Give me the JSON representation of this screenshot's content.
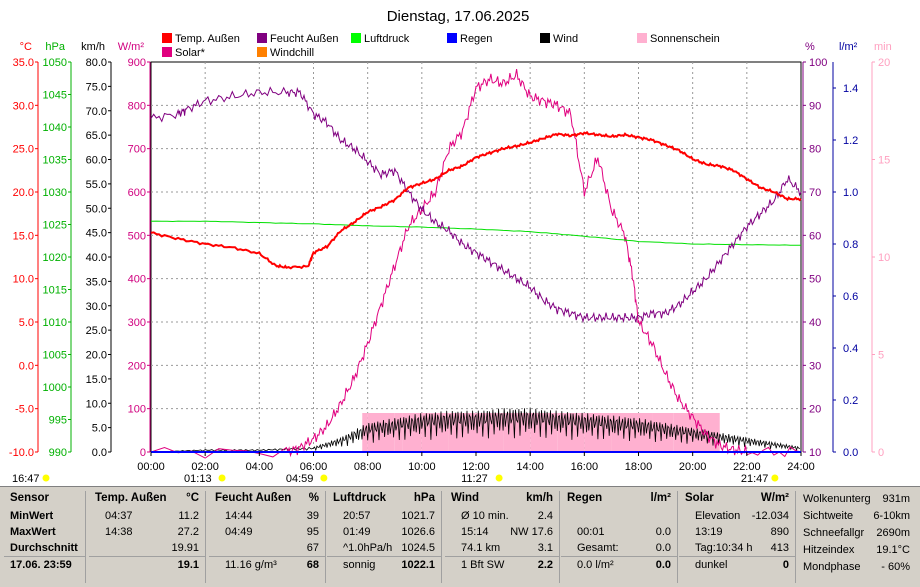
{
  "chart_data": {
    "type": "line",
    "title": "Dienstag, 17.06.2025",
    "legend": [
      {
        "name": "Temp. Außen",
        "color": "#ff0000"
      },
      {
        "name": "Feucht Außen",
        "color": "#800080"
      },
      {
        "name": "Luftdruck",
        "color": "#00ff00"
      },
      {
        "name": "Regen",
        "color": "#0000ff"
      },
      {
        "name": "Wind",
        "color": "#000000"
      },
      {
        "name": "Sonnenschein",
        "color": "#ffb0d0"
      },
      {
        "name": "Solar*",
        "color": "#e0007f"
      },
      {
        "name": "Windchill",
        "color": "#ff8000"
      }
    ],
    "axes_left": [
      {
        "unit": "°C",
        "color": "#ff0000",
        "ticks": [
          "35.0",
          "30.0",
          "25.0",
          "20.0",
          "15.0",
          "10.0",
          "5.0",
          "0.0",
          "-5.0",
          "-10.0"
        ]
      },
      {
        "unit": "hPa",
        "color": "#00b000",
        "ticks": [
          "1050",
          "1045",
          "1040",
          "1035",
          "1030",
          "1025",
          "1020",
          "1015",
          "1010",
          "1005",
          "1000",
          "995",
          "990"
        ]
      },
      {
        "unit": "km/h",
        "color": "#000000",
        "ticks": [
          "80.0",
          "75.0",
          "70.0",
          "65.0",
          "60.0",
          "55.0",
          "50.0",
          "45.0",
          "40.0",
          "35.0",
          "30.0",
          "25.0",
          "20.0",
          "15.0",
          "10.0",
          "5.0",
          "0.0"
        ]
      },
      {
        "unit": "W/m²",
        "color": "#d0007f",
        "ticks": [
          "900",
          "800",
          "700",
          "600",
          "500",
          "400",
          "300",
          "200",
          "100",
          "0"
        ]
      }
    ],
    "axes_right": [
      {
        "unit": "%",
        "color": "#800080",
        "ticks": [
          "100",
          "90",
          "80",
          "70",
          "60",
          "50",
          "40",
          "30",
          "20",
          "10"
        ]
      },
      {
        "unit": "l/m²",
        "color": "#0000a0",
        "ticks": [
          "1.4",
          "1.2",
          "1.0",
          "0.8",
          "0.6",
          "0.4",
          "0.2",
          "0.0"
        ]
      },
      {
        "unit": "min",
        "color": "#ffa0c0",
        "ticks": [
          "20",
          "15",
          "10",
          "5",
          "0"
        ]
      }
    ],
    "x_ticks": [
      "00:00",
      "02:00",
      "04:00",
      "06:00",
      "08:00",
      "10:00",
      "12:00",
      "14:00",
      "16:00",
      "18:00",
      "20:00",
      "22:00",
      "24:00"
    ],
    "x_range": [
      0,
      24
    ],
    "markers": [
      {
        "label": "16:47",
        "x": -0.5
      },
      {
        "label": "01:13",
        "x": 1.22
      },
      {
        "label": "04:59",
        "x": 4.98
      },
      {
        "label": "11:27",
        "x": 11.45
      },
      {
        "label": "21:47",
        "x": 21.78
      }
    ],
    "temperature_c": {
      "x": [
        0,
        1,
        2,
        3,
        4,
        4.6,
        5,
        5.8,
        6,
        6.5,
        7,
        7.5,
        8,
        8.5,
        9,
        9.5,
        10,
        10.5,
        11,
        11.5,
        12,
        12.5,
        13,
        13.5,
        14,
        14.5,
        15,
        15.5,
        16,
        16.5,
        17,
        17.5,
        18,
        18.5,
        19,
        19.5,
        20,
        20.5,
        21,
        21.5,
        22,
        22.5,
        23,
        23.5,
        24
      ],
      "y": [
        15.3,
        14.6,
        14.0,
        13.6,
        12.9,
        11.5,
        11.3,
        11.4,
        13.0,
        13.7,
        15.5,
        16.5,
        17.7,
        18.3,
        19.1,
        20.5,
        21.0,
        21.5,
        22.5,
        23.0,
        24.0,
        24.5,
        25.0,
        25.3,
        25.7,
        26.2,
        26.7,
        26.5,
        26.8,
        26.6,
        26.4,
        26.6,
        26.3,
        26.0,
        25.4,
        24.8,
        23.8,
        23.2,
        23.0,
        22.5,
        21.5,
        20.5,
        20.0,
        19.2,
        19.2
      ]
    },
    "humidity_pct": {
      "x": [
        0,
        1,
        1.3,
        2,
        3,
        4,
        5,
        5.5,
        6,
        6.5,
        7,
        7.5,
        8,
        8.5,
        9,
        9.5,
        10,
        10.5,
        11,
        11.5,
        12,
        12.5,
        13,
        13.5,
        14,
        14.5,
        15,
        15.5,
        16,
        16.5,
        17,
        17.5,
        18,
        18.5,
        19,
        19.5,
        20,
        20.5,
        21,
        21.5,
        22,
        22.5,
        23,
        23.5,
        24
      ],
      "y": [
        87,
        88,
        89,
        91,
        92,
        93,
        93,
        93,
        88,
        86,
        82,
        80,
        77,
        74,
        75,
        70,
        66,
        63,
        61,
        58,
        56,
        54,
        52,
        50,
        48,
        45,
        43,
        42,
        41,
        41,
        41,
        41,
        41,
        42,
        42,
        44,
        47,
        50,
        54,
        58,
        62,
        65,
        68,
        73,
        70
      ]
    },
    "pressure_hpa": {
      "x": [
        0,
        2,
        4,
        6,
        8,
        10,
        12,
        14,
        16,
        18,
        20,
        22,
        24
      ],
      "y": [
        1025.5,
        1025.5,
        1025.3,
        1025.1,
        1024.8,
        1024.6,
        1024.3,
        1023.9,
        1023.2,
        1022.4,
        1022.0,
        1021.9,
        1021.8
      ]
    },
    "solar_wm2": {
      "x": [
        0,
        5.0,
        5.5,
        6,
        6.5,
        7,
        7.5,
        8,
        8.5,
        9,
        9.5,
        10,
        10.5,
        11,
        11.5,
        12,
        12.5,
        13,
        13.5,
        14,
        14.5,
        15,
        15.5,
        16,
        16.5,
        17,
        17.5,
        17.8,
        18,
        18.5,
        19,
        19.5,
        20,
        20.5,
        21,
        21.5,
        22,
        24
      ],
      "y": [
        0,
        0,
        10,
        30,
        60,
        110,
        170,
        250,
        340,
        430,
        520,
        560,
        600,
        700,
        740,
        840,
        860,
        850,
        870,
        820,
        810,
        800,
        780,
        600,
        680,
        560,
        500,
        400,
        300,
        250,
        180,
        120,
        80,
        40,
        15,
        5,
        0,
        0
      ]
    },
    "wind_kmh": {
      "x": [
        0,
        2,
        4,
        6,
        7,
        8,
        9,
        10,
        11,
        12,
        13,
        14,
        15,
        16,
        17,
        18,
        19,
        20,
        21,
        22,
        23,
        24
      ],
      "y": [
        0,
        0.5,
        0.5,
        1,
        3,
        6,
        7,
        8,
        8.5,
        8.5,
        9,
        9,
        8.5,
        8,
        7.5,
        7,
        6,
        5,
        4,
        3,
        2,
        1
      ]
    },
    "sunshine_min": {
      "x": [
        7.8,
        8.0,
        9.0,
        9.3,
        10,
        11,
        12,
        13,
        14,
        15,
        16,
        17,
        18,
        18.5,
        19.3,
        21
      ],
      "y": [
        2,
        2,
        2,
        2,
        2,
        2,
        2,
        2,
        2,
        2,
        2,
        2,
        2,
        2,
        2,
        0
      ]
    },
    "rain_lm2": {
      "x": [
        0,
        24
      ],
      "y": [
        0,
        0
      ]
    }
  },
  "table": {
    "sections": [
      {
        "title": "Sensor",
        "unit": "",
        "rows": [
          [
            "MinWert",
            ""
          ],
          [
            "MaxWert",
            ""
          ],
          [
            "Durchschnitt",
            ""
          ]
        ],
        "footer": "17.06. 23:59"
      },
      {
        "title": "Temp. Außen",
        "unit": "°C",
        "rows": [
          [
            "04:37",
            "11.2"
          ],
          [
            "14:38",
            "27.2"
          ],
          [
            "",
            "19.91"
          ]
        ],
        "footer_left": "",
        "footer": "19.1"
      },
      {
        "title": "Feucht Außen",
        "unit": "%",
        "rows": [
          [
            "14:44",
            "39"
          ],
          [
            "04:49",
            "95"
          ],
          [
            "",
            "67"
          ]
        ],
        "footer_left": "11.16 g/m³",
        "footer": "68"
      },
      {
        "title": "Luftdruck",
        "unit": "hPa",
        "rows": [
          [
            "20:57",
            "1021.7"
          ],
          [
            "01:49",
            "1026.6"
          ],
          [
            "^1.0hPa/h",
            "1024.5"
          ]
        ],
        "footer_left": "sonnig",
        "footer": "1022.1"
      },
      {
        "title": "Wind",
        "unit": "km/h",
        "rows": [
          [
            "Ø 10 min.",
            "2.4"
          ],
          [
            "15:14",
            "NW 17.6"
          ],
          [
            "74.1 km",
            "3.1"
          ]
        ],
        "footer_left": "1 Bft SW",
        "footer": "2.2"
      },
      {
        "title": "Regen",
        "unit": "l/m²",
        "rows": [
          [
            "",
            ""
          ],
          [
            "00:01",
            "0.0"
          ],
          [
            "Gesamt:",
            "0.0"
          ]
        ],
        "footer_left": "0.0 l/m²",
        "footer": "0.0"
      },
      {
        "title": "Solar",
        "unit": "W/m²",
        "rows": [
          [
            "Elevation",
            "-12.034"
          ],
          [
            "13:19",
            "890"
          ],
          [
            "Tag:10:34 h",
            "413"
          ]
        ],
        "footer_left": "dunkel",
        "footer": "0"
      },
      {
        "title": "",
        "unit": "",
        "rows": [
          [
            "Wolkenunterg",
            "931m"
          ],
          [
            "Sichtweite",
            "6-10km"
          ],
          [
            "Schneefallgr",
            "2690m"
          ],
          [
            "Hitzeindex",
            "19.1°C"
          ],
          [
            "Mondphase",
            "- 60%"
          ]
        ]
      }
    ]
  }
}
